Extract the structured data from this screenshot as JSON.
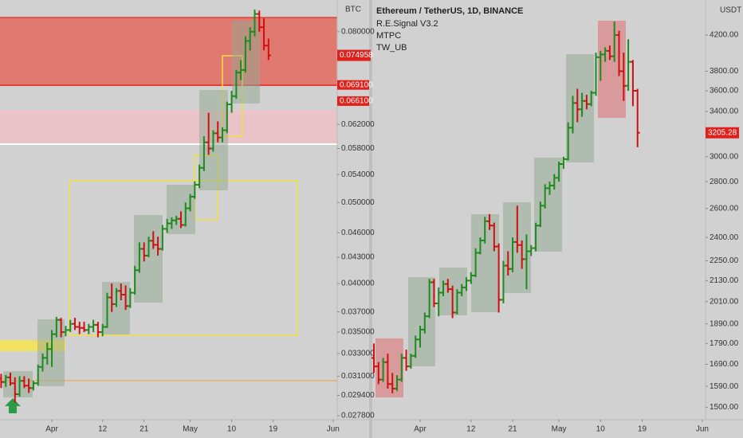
{
  "chart_data": [
    {
      "type": "ohlc",
      "currency": "BTC",
      "log_scale": true,
      "up_color": "#1f8a1f",
      "down_color": "#d01010",
      "ylim": [
        0.0275,
        0.0873
      ],
      "xlim": [
        -0.25,
        72.9
      ],
      "yticks": [
        {
          "value": 0.08,
          "label": "0.080000"
        },
        {
          "value": 0.062,
          "label": "0.062000"
        },
        {
          "value": 0.058,
          "label": "0.058000"
        },
        {
          "value": 0.054,
          "label": "0.054000"
        },
        {
          "value": 0.05,
          "label": "0.050000"
        },
        {
          "value": 0.046,
          "label": "0.046000"
        },
        {
          "value": 0.043,
          "label": "0.043000"
        },
        {
          "value": 0.04,
          "label": "0.040000"
        },
        {
          "value": 0.037,
          "label": "0.037000"
        },
        {
          "value": 0.035,
          "label": "0.035000"
        },
        {
          "value": 0.033,
          "label": "0.033000"
        },
        {
          "value": 0.031,
          "label": "0.031000"
        },
        {
          "value": 0.0294,
          "label": "0.029400"
        },
        {
          "value": 0.0278,
          "label": "0.027800"
        }
      ],
      "xticks": [
        {
          "value": 11,
          "label": "Apr"
        },
        {
          "value": 22,
          "label": "12"
        },
        {
          "value": 31,
          "label": "21"
        },
        {
          "value": 41,
          "label": "May"
        },
        {
          "value": 50,
          "label": "10"
        },
        {
          "value": 59,
          "label": "19"
        },
        {
          "value": 72,
          "label": "Jun"
        }
      ],
      "price_labels": [
        {
          "value": 0.0691,
          "label": "0.069100"
        },
        {
          "value": 0.0661,
          "label": "0.066100"
        }
      ],
      "open": [
        0.0308,
        0.0305,
        0.0309,
        0.0304,
        0.0295,
        0.0306,
        0.0302,
        0.03,
        0.0304,
        0.0318,
        0.0326,
        0.0334,
        0.0348,
        0.0362,
        0.035,
        0.0352,
        0.0358,
        0.0355,
        0.0354,
        0.0352,
        0.0355,
        0.0357,
        0.035,
        0.0355,
        0.0385,
        0.0378,
        0.0392,
        0.0388,
        0.0376,
        0.039,
        0.0415,
        0.044,
        0.0432,
        0.045,
        0.0445,
        0.044,
        0.0465,
        0.0472,
        0.0476,
        0.0478,
        0.047,
        0.0492,
        0.0508,
        0.0525,
        0.055,
        0.059,
        0.058,
        0.0605,
        0.0598,
        0.061,
        0.0655,
        0.067,
        0.0715,
        0.072,
        0.078,
        0.08,
        0.084,
        0.081,
        0.077
      ],
      "high": [
        0.0312,
        0.0311,
        0.0313,
        0.0309,
        0.031,
        0.031,
        0.0308,
        0.0306,
        0.032,
        0.033,
        0.034,
        0.0352,
        0.0365,
        0.0364,
        0.0356,
        0.0362,
        0.0364,
        0.036,
        0.036,
        0.0358,
        0.0362,
        0.036,
        0.0358,
        0.039,
        0.04,
        0.0395,
        0.04,
        0.0398,
        0.0395,
        0.042,
        0.0448,
        0.0448,
        0.0455,
        0.0462,
        0.0455,
        0.047,
        0.0478,
        0.048,
        0.0482,
        0.0488,
        0.05,
        0.0512,
        0.053,
        0.0555,
        0.06,
        0.064,
        0.061,
        0.0625,
        0.0615,
        0.066,
        0.068,
        0.072,
        0.074,
        0.079,
        0.081,
        0.085,
        0.0848,
        0.083,
        0.0785
      ],
      "low": [
        0.03,
        0.0301,
        0.0302,
        0.0288,
        0.0293,
        0.03,
        0.0296,
        0.0298,
        0.0302,
        0.0314,
        0.032,
        0.0318,
        0.0345,
        0.0345,
        0.0346,
        0.035,
        0.0352,
        0.0348,
        0.035,
        0.0348,
        0.035,
        0.0345,
        0.0346,
        0.0354,
        0.037,
        0.0375,
        0.0382,
        0.0372,
        0.0374,
        0.0388,
        0.0412,
        0.0425,
        0.043,
        0.044,
        0.0432,
        0.0438,
        0.046,
        0.0465,
        0.047,
        0.0466,
        0.0468,
        0.0488,
        0.0505,
        0.052,
        0.0545,
        0.057,
        0.0575,
        0.059,
        0.059,
        0.0605,
        0.064,
        0.0665,
        0.07,
        0.0715,
        0.076,
        0.079,
        0.08,
        0.076,
        0.074
      ],
      "close": [
        0.0305,
        0.0309,
        0.0304,
        0.0295,
        0.0306,
        0.0302,
        0.03,
        0.0304,
        0.0318,
        0.0326,
        0.0334,
        0.0348,
        0.0362,
        0.035,
        0.0352,
        0.0358,
        0.0355,
        0.0354,
        0.0352,
        0.0355,
        0.0357,
        0.035,
        0.0355,
        0.0385,
        0.0378,
        0.0392,
        0.0388,
        0.0376,
        0.039,
        0.0415,
        0.044,
        0.0432,
        0.045,
        0.0445,
        0.044,
        0.0465,
        0.0472,
        0.0476,
        0.0478,
        0.047,
        0.0492,
        0.0508,
        0.0525,
        0.055,
        0.059,
        0.058,
        0.0605,
        0.0598,
        0.061,
        0.0655,
        0.067,
        0.0715,
        0.072,
        0.078,
        0.08,
        0.084,
        0.081,
        0.077,
        0.074958
      ]
    },
    {
      "type": "ohlc",
      "title": "Ethereum / TetherUS, 1D, BINANCE",
      "indicators": [
        "R.E.Signal V3.2",
        "MTPC",
        "TW_UB"
      ],
      "currency": "USDT",
      "log_scale": true,
      "up_color": "#1f8a1f",
      "down_color": "#d01010",
      "ylim": [
        1450,
        4627
      ],
      "xlim": [
        -0.17,
        71.7
      ],
      "yticks": [
        {
          "value": 4200,
          "label": "4200.00"
        },
        {
          "value": 3800,
          "label": "3800.00"
        },
        {
          "value": 3600,
          "label": "3600.00"
        },
        {
          "value": 3400,
          "label": "3400.00"
        },
        {
          "value": 3000,
          "label": "3000.00"
        },
        {
          "value": 2800,
          "label": "2800.00"
        },
        {
          "value": 2600,
          "label": "2600.00"
        },
        {
          "value": 2400,
          "label": "2400.00"
        },
        {
          "value": 2250,
          "label": "2250.00"
        },
        {
          "value": 2130,
          "label": "2130.00"
        },
        {
          "value": 2010,
          "label": "2010.00"
        },
        {
          "value": 1890,
          "label": "1890.00"
        },
        {
          "value": 1790,
          "label": "1790.00"
        },
        {
          "value": 1690,
          "label": "1690.00"
        },
        {
          "value": 1590,
          "label": "1590.00"
        },
        {
          "value": 1500,
          "label": "1500.00"
        }
      ],
      "xticks": [
        {
          "value": 10,
          "label": "Apr"
        },
        {
          "value": 21,
          "label": "12"
        },
        {
          "value": 30,
          "label": "21"
        },
        {
          "value": 40,
          "label": "May"
        },
        {
          "value": 49,
          "label": "10"
        },
        {
          "value": 58,
          "label": "19"
        },
        {
          "value": 71,
          "label": "Jun"
        }
      ],
      "price_labels": [],
      "open": [
        1720,
        1680,
        1620,
        1700,
        1600,
        1580,
        1620,
        1720,
        1680,
        1730,
        1810,
        1860,
        1930,
        2120,
        2000,
        2060,
        2110,
        2080,
        1950,
        2060,
        2090,
        2130,
        2160,
        2300,
        2380,
        2510,
        2480,
        2340,
        2020,
        2220,
        2200,
        2370,
        2350,
        2260,
        2310,
        2330,
        2480,
        2620,
        2750,
        2770,
        2830,
        2940,
        2980,
        3250,
        3480,
        3420,
        3500,
        3470,
        3580,
        3950,
        3980,
        4020,
        3960,
        4200,
        3800,
        3650,
        3900,
        3600
      ],
      "high": [
        1790,
        1700,
        1720,
        1740,
        1650,
        1640,
        1740,
        1760,
        1740,
        1830,
        1880,
        1950,
        2140,
        2140,
        2090,
        2130,
        2140,
        2100,
        2080,
        2110,
        2150,
        2180,
        2330,
        2400,
        2540,
        2560,
        2500,
        2360,
        2250,
        2310,
        2400,
        2620,
        2380,
        2420,
        2350,
        2500,
        2650,
        2780,
        2800,
        2860,
        2960,
        3000,
        3300,
        3550,
        3620,
        3580,
        3560,
        3600,
        4000,
        4020,
        4060,
        4080,
        4360,
        4250,
        4000,
        4150,
        3920,
        3620
      ],
      "low": [
        1650,
        1600,
        1610,
        1580,
        1560,
        1570,
        1610,
        1660,
        1670,
        1720,
        1770,
        1840,
        1920,
        1980,
        1930,
        2040,
        2060,
        1920,
        1940,
        2040,
        2070,
        2110,
        2150,
        2290,
        2360,
        2450,
        2310,
        1950,
        2000,
        2160,
        2180,
        2300,
        2200,
        2080,
        2280,
        2310,
        2470,
        2600,
        2700,
        2740,
        2800,
        2900,
        2970,
        3200,
        3300,
        3350,
        3420,
        3450,
        3550,
        3700,
        3900,
        3920,
        3900,
        3750,
        3500,
        3600,
        3450,
        3080
      ],
      "close": [
        1680,
        1620,
        1700,
        1600,
        1580,
        1620,
        1720,
        1680,
        1730,
        1810,
        1860,
        1930,
        2120,
        2000,
        2060,
        2110,
        2080,
        1950,
        2060,
        2090,
        2130,
        2160,
        2300,
        2380,
        2510,
        2480,
        2340,
        2020,
        2220,
        2200,
        2370,
        2350,
        2260,
        2310,
        2330,
        2480,
        2620,
        2750,
        2770,
        2830,
        2940,
        2980,
        3250,
        3480,
        3420,
        3500,
        3470,
        3580,
        3950,
        3980,
        4020,
        3960,
        4200,
        3800,
        3650,
        3900,
        3600,
        3205.28
      ]
    }
  ]
}
